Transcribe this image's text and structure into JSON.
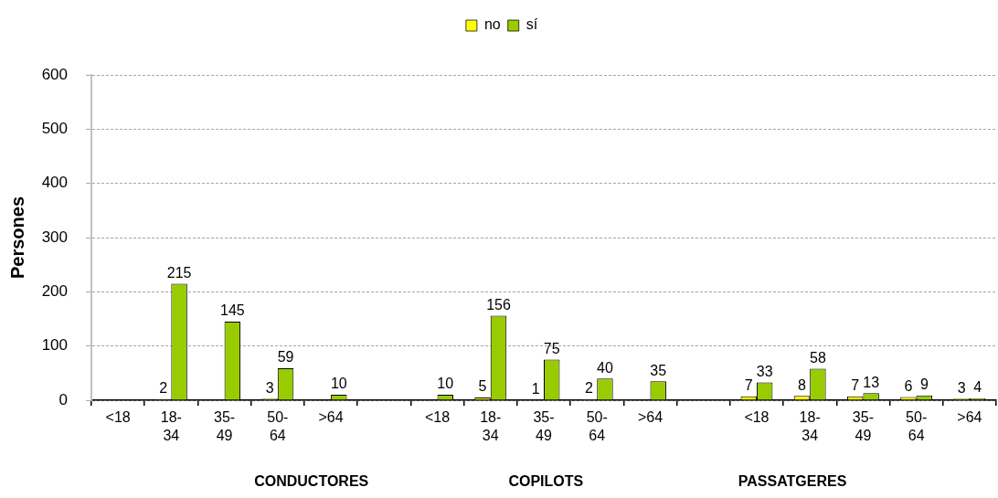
{
  "chart_data": {
    "type": "bar",
    "categories": [
      "<18",
      "18-34",
      "35-49",
      "50-64",
      ">64",
      null,
      "<18",
      "18-34",
      "35-49",
      "50-64",
      ">64",
      null,
      "<18",
      "18-34",
      "35-49",
      "50-64",
      ">64"
    ],
    "series": [
      {
        "name": "no",
        "color": "#ffff00",
        "values": [
          null,
          2,
          null,
          3,
          null,
          null,
          null,
          5,
          1,
          2,
          null,
          null,
          7,
          8,
          7,
          6,
          3
        ]
      },
      {
        "name": "sí",
        "color": "#99cc00",
        "values": [
          null,
          215,
          145,
          59,
          10,
          null,
          10,
          156,
          75,
          40,
          35,
          null,
          33,
          58,
          13,
          9,
          4
        ]
      }
    ],
    "ylabel": "Persones",
    "ylim": [
      0,
      600
    ],
    "yticks": [
      0,
      100,
      200,
      300,
      400,
      500,
      600
    ],
    "grid": "y",
    "legend": "top",
    "data_labels": true,
    "annotations": [
      "CONDUCTORES",
      "COPILOTS",
      "PASSATGERES"
    ]
  }
}
